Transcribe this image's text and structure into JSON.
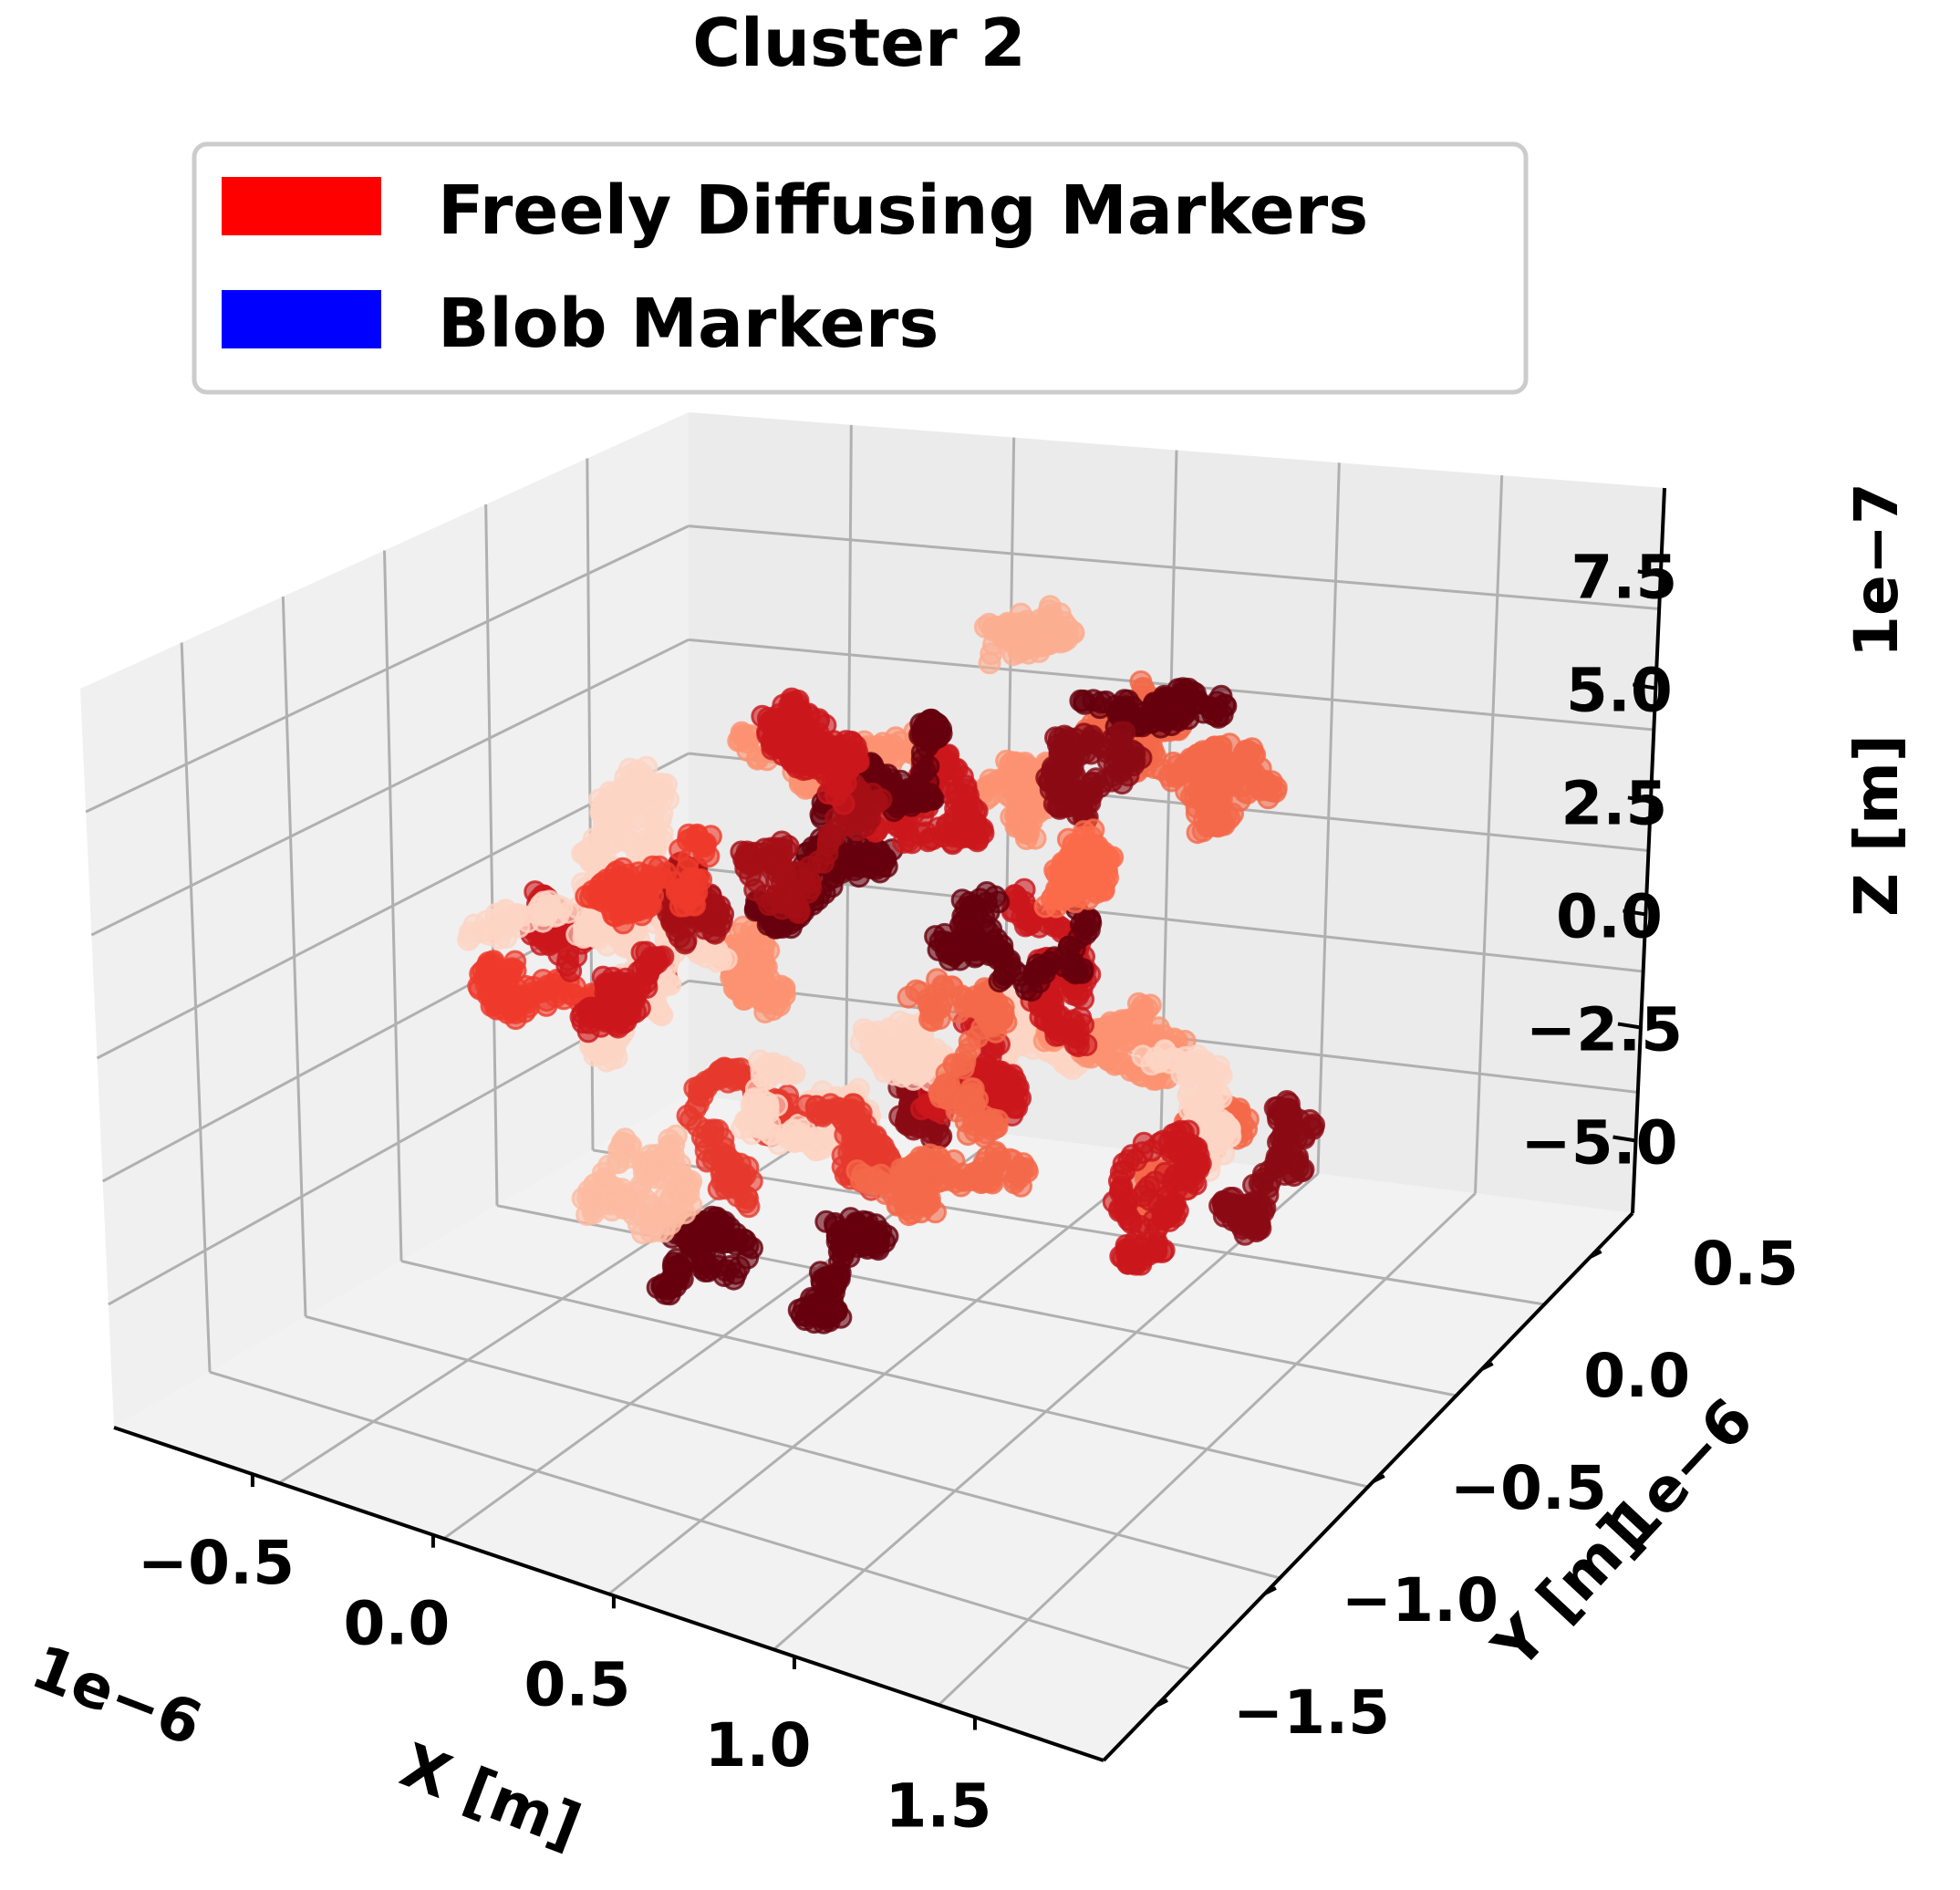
{
  "chart_data": {
    "type": "scatter",
    "projection": "3d",
    "title": "Cluster 2",
    "legend": {
      "placement": "top-center",
      "entries": [
        {
          "label": "Freely Diffusing Markers",
          "color": "#ff0000"
        },
        {
          "label": "Blob Markers",
          "color": "#0000ff"
        }
      ]
    },
    "axes": {
      "x": {
        "label": "X [m]",
        "offset": "1e−6",
        "ticks": [
          "−0.5",
          "0.0",
          "0.5",
          "1.0",
          "1.5"
        ],
        "range": [
          -0.9,
          2.0
        ]
      },
      "y": {
        "label": "Y [m]",
        "offset": "1e−6",
        "ticks": [
          "−1.5",
          "−1.0",
          "−0.5",
          "0.0",
          "0.5"
        ],
        "range": [
          -1.8,
          0.8
        ]
      },
      "z": {
        "label": "Z [m]",
        "offset": "1e−7",
        "ticks": [
          "−5.0",
          "−2.5",
          "0.0",
          "2.5",
          "5.0",
          "7.5"
        ],
        "range": [
          -6.5,
          8.5
        ]
      }
    },
    "grid": true,
    "colormap": "Reds",
    "series": [
      {
        "trajectory_count": 42,
        "point_spread_m": 8e-07
      }
    ]
  }
}
